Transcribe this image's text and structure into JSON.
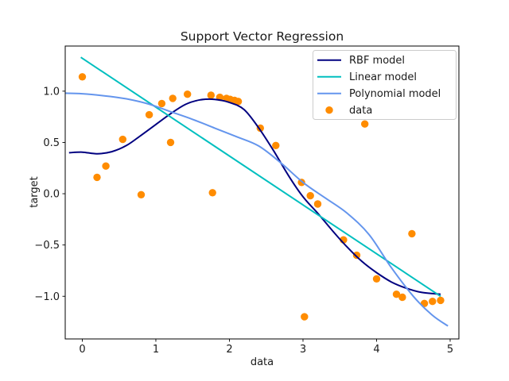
{
  "chart_data": {
    "type": "scatter",
    "title": "Support Vector Regression",
    "xlabel": "data",
    "ylabel": "target",
    "xlim": [
      -0.232,
      5.119
    ],
    "ylim": [
      -1.416,
      1.44
    ],
    "grid": false,
    "x_ticks": [
      0,
      1,
      2,
      3,
      4,
      5
    ],
    "x_tick_labels": [
      "0",
      "1",
      "2",
      "3",
      "4",
      "5"
    ],
    "y_ticks": [
      1.0,
      0.5,
      0.0,
      -0.5,
      -1.0
    ],
    "y_tick_labels": [
      "1.0",
      "0.5",
      "0.0",
      "−0.5",
      "−1.0"
    ],
    "legend_position": "upper right",
    "colors": {
      "rbf": "#000080",
      "linear": "#00bfbf",
      "polynomial": "#6495ed",
      "data": "#ff8c00",
      "text": "#1a1a1a",
      "legend_border": "#cccccc"
    },
    "series": [
      {
        "name": "RBF model",
        "type": "line",
        "color": "#000080",
        "width": 2,
        "points": [
          [
            -0.18,
            0.4
          ],
          [
            0.0,
            0.405
          ],
          [
            0.2,
            0.39
          ],
          [
            0.4,
            0.41
          ],
          [
            0.6,
            0.47
          ],
          [
            0.8,
            0.57
          ],
          [
            1.0,
            0.675
          ],
          [
            1.2,
            0.78
          ],
          [
            1.4,
            0.87
          ],
          [
            1.6,
            0.915
          ],
          [
            1.8,
            0.92
          ],
          [
            2.0,
            0.89
          ],
          [
            2.2,
            0.82
          ],
          [
            2.4,
            0.64
          ],
          [
            2.6,
            0.42
          ],
          [
            2.8,
            0.18
          ],
          [
            3.0,
            -0.03
          ],
          [
            3.2,
            -0.19
          ],
          [
            3.4,
            -0.36
          ],
          [
            3.6,
            -0.52
          ],
          [
            3.8,
            -0.66
          ],
          [
            4.0,
            -0.77
          ],
          [
            4.2,
            -0.86
          ],
          [
            4.4,
            -0.92
          ],
          [
            4.6,
            -0.96
          ],
          [
            4.87,
            -0.98
          ]
        ]
      },
      {
        "name": "Linear model",
        "type": "line",
        "color": "#00bfbf",
        "width": 2,
        "points": [
          [
            -0.02,
            1.33
          ],
          [
            4.87,
            -1.0
          ]
        ]
      },
      {
        "name": "Polynomial model",
        "type": "line",
        "color": "#6495ed",
        "width": 2,
        "points": [
          [
            -0.23,
            0.98
          ],
          [
            0.0,
            0.975
          ],
          [
            0.3,
            0.955
          ],
          [
            0.6,
            0.925
          ],
          [
            0.9,
            0.875
          ],
          [
            1.2,
            0.8
          ],
          [
            1.5,
            0.725
          ],
          [
            1.8,
            0.64
          ],
          [
            2.1,
            0.555
          ],
          [
            2.4,
            0.465
          ],
          [
            2.7,
            0.3
          ],
          [
            3.0,
            0.11
          ],
          [
            3.3,
            -0.04
          ],
          [
            3.6,
            -0.19
          ],
          [
            3.9,
            -0.4
          ],
          [
            4.2,
            -0.72
          ],
          [
            4.5,
            -1.0
          ],
          [
            4.75,
            -1.18
          ],
          [
            4.97,
            -1.29
          ]
        ]
      },
      {
        "name": "data",
        "type": "scatter",
        "color": "#ff8c00",
        "marker_radius": 4.7,
        "points": [
          [
            0.0,
            1.14
          ],
          [
            0.2,
            0.16
          ],
          [
            0.32,
            0.27
          ],
          [
            0.55,
            0.53
          ],
          [
            0.8,
            -0.01
          ],
          [
            0.91,
            0.77
          ],
          [
            1.08,
            0.88
          ],
          [
            1.2,
            0.5
          ],
          [
            1.23,
            0.93
          ],
          [
            1.43,
            0.97
          ],
          [
            1.75,
            0.96
          ],
          [
            1.77,
            0.01
          ],
          [
            1.87,
            0.94
          ],
          [
            1.96,
            0.93
          ],
          [
            2.01,
            0.92
          ],
          [
            2.07,
            0.91
          ],
          [
            2.12,
            0.9
          ],
          [
            2.42,
            0.64
          ],
          [
            2.63,
            0.47
          ],
          [
            2.98,
            0.11
          ],
          [
            3.02,
            -1.2
          ],
          [
            3.1,
            -0.02
          ],
          [
            3.2,
            -0.1
          ],
          [
            3.55,
            -0.45
          ],
          [
            3.73,
            -0.6
          ],
          [
            3.84,
            0.68
          ],
          [
            4.0,
            -0.83
          ],
          [
            4.27,
            -0.98
          ],
          [
            4.35,
            -1.01
          ],
          [
            4.48,
            -0.39
          ],
          [
            4.65,
            -1.07
          ],
          [
            4.76,
            -1.05
          ],
          [
            4.87,
            -1.04
          ]
        ]
      }
    ]
  }
}
